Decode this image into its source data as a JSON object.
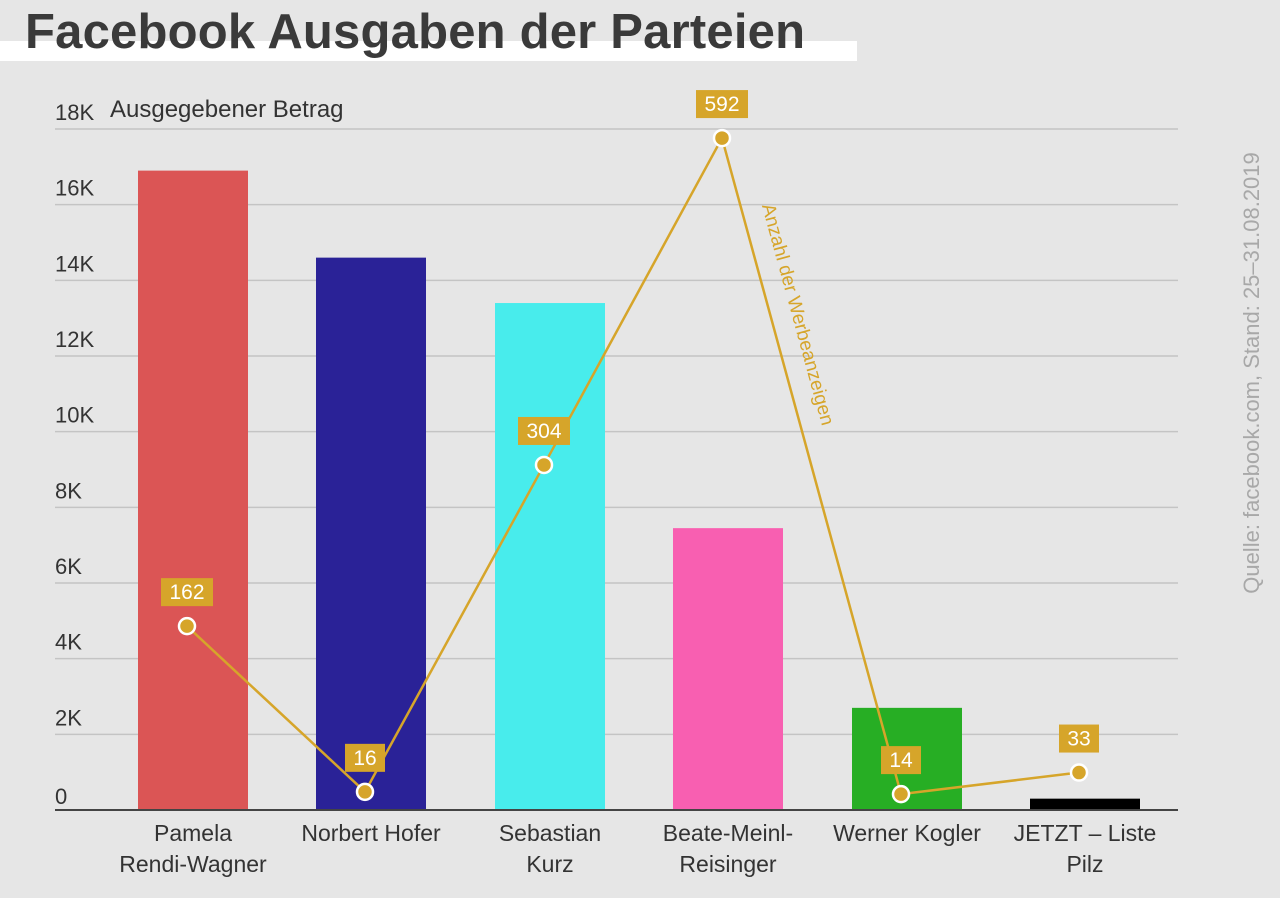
{
  "chart_data": {
    "type": "bar",
    "title": "Facebook Ausgaben der Parteien",
    "ylabel": "Ausgegebener Betrag",
    "ylim": [
      0,
      18000
    ],
    "yticks": [
      0,
      2000,
      4000,
      6000,
      8000,
      10000,
      12000,
      14000,
      16000,
      18000
    ],
    "ytick_labels": [
      "0",
      "2K",
      "4K",
      "6K",
      "8K",
      "10K",
      "12K",
      "14K",
      "16K",
      "18K"
    ],
    "categories": [
      [
        "Pamela",
        "Rendi-Wagner"
      ],
      [
        "Norbert Hofer"
      ],
      [
        "Sebastian",
        "Kurz"
      ],
      [
        "Beate-Meinl-",
        "Reisinger"
      ],
      [
        "Werner Kogler"
      ],
      [
        "JETZT – Liste",
        "Pilz"
      ]
    ],
    "series": [
      {
        "name": "Ausgegebener Betrag",
        "type": "bar",
        "values": [
          16900,
          14600,
          13400,
          7450,
          2700,
          300
        ],
        "colors": [
          "#db5555",
          "#2a2297",
          "#48ecec",
          "#f85fb1",
          "#27ae24",
          "#000000"
        ]
      },
      {
        "name": "Anzahl der Werbeanzeigen",
        "type": "line",
        "values": [
          162,
          16,
          304,
          592,
          14,
          33
        ],
        "color": "#d6a52a",
        "secondary_max": 600
      }
    ],
    "grid": true,
    "source": "Quelle: facebook.com, Stand: 25–31.08.2019"
  }
}
